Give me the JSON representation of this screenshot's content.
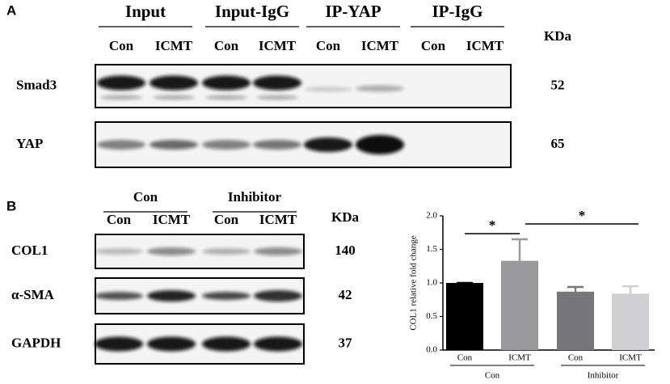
{
  "panel_a": {
    "label": "A",
    "groups": [
      "Input",
      "Input-IgG",
      "IP-YAP",
      "IP-IgG"
    ],
    "lanes": [
      "Con",
      "ICMT",
      "Con",
      "ICMT",
      "Con",
      "ICMT",
      "Con",
      "ICMT"
    ],
    "kda_header": "KDa",
    "rows": [
      {
        "name": "Smad3",
        "kda": 52
      },
      {
        "name": "YAP",
        "kda": 65
      }
    ]
  },
  "panel_b": {
    "label": "B",
    "groups": [
      "Con",
      "Inhibitor"
    ],
    "lanes": [
      "Con",
      "ICMT",
      "Con",
      "ICMT"
    ],
    "kda_header": "KDa",
    "rows": [
      {
        "name": "COL1",
        "kda": 140
      },
      {
        "name": "α-SMA",
        "kda": 42
      },
      {
        "name": "GAPDH",
        "kda": 37
      }
    ]
  },
  "chart_data": {
    "type": "bar",
    "y_label": "COL1 relative fold change",
    "categories": [
      "Con",
      "ICMT",
      "Con",
      "ICMT"
    ],
    "groups": [
      "Con",
      "Inhibitor"
    ],
    "values": [
      1.0,
      1.33,
      0.87,
      0.84
    ],
    "errors": [
      0,
      0.32,
      0.07,
      0.11
    ],
    "colors": [
      "#000000",
      "#9a9a9d",
      "#77777a",
      "#cfcfd1"
    ],
    "ylim": [
      0,
      2
    ],
    "yticks": [
      {
        "value": 0,
        "label": "0.0"
      },
      {
        "value": 0.5,
        "label": "0.5"
      },
      {
        "value": 1,
        "label": "1.0"
      },
      {
        "value": 1.5,
        "label": "1.5"
      },
      {
        "value": 2,
        "label": "2.0"
      }
    ],
    "annotations": [
      "*",
      "*"
    ]
  }
}
